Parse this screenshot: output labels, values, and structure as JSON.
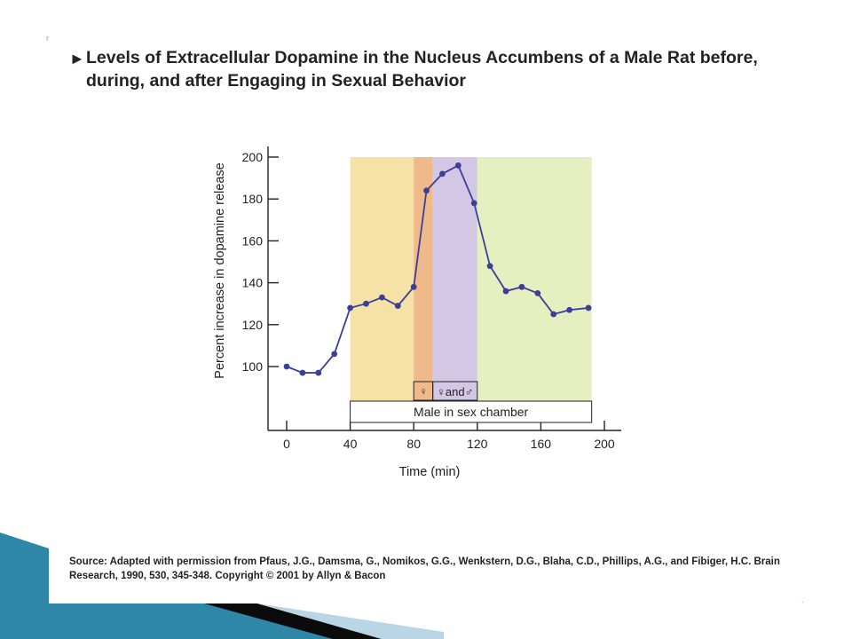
{
  "slide": {
    "bullet": "►",
    "title": "Levels of Extracellular Dopamine in the Nucleus Accumbens of a Male Rat before, during, and after Engaging in Sexual Behavior",
    "corner_mark": "r",
    "source": "Source: Adapted with permission from Pfaus, J.G., Damsma, G., Nomikos, G.G., Wenkstern, D.G., Blaha, C.D., Phillips, A.G., and Fibiger, H.C. Brain Research, 1990, 530, 345-348. Copyright © 2001 by Allyn & Bacon"
  },
  "colors": {
    "line": "#3b3f98",
    "region_yellow": "#f6e2a6",
    "region_orange": "#f0b98a",
    "region_purple": "#d4c7e6",
    "region_green": "#e6efbf",
    "deco_teal": "#2e87a7",
    "deco_dark": "#0b0b0b",
    "deco_light": "#b9d6e6"
  },
  "chart_data": {
    "type": "line",
    "title": "",
    "xlabel": "Time (min)",
    "ylabel": "Percent increase in dopamine release",
    "xlim": [
      0,
      200
    ],
    "ylim": [
      90,
      205
    ],
    "xticks": [
      0,
      40,
      80,
      120,
      160,
      200
    ],
    "yticks": [
      100,
      120,
      140,
      160,
      180,
      200
    ],
    "grid": false,
    "series": [
      {
        "x": [
          0,
          10,
          20,
          30,
          40,
          50,
          60,
          70,
          80,
          88,
          98,
          108,
          118,
          128,
          138,
          148,
          158,
          168,
          178,
          190
        ],
        "y": [
          100,
          97,
          97,
          106,
          128,
          130,
          133,
          129,
          138,
          184,
          192,
          196,
          178,
          148,
          136,
          138,
          135,
          125,
          127,
          128
        ]
      }
    ],
    "regions": [
      {
        "x": [
          40,
          80
        ],
        "color_key": "region_yellow"
      },
      {
        "x": [
          80,
          92
        ],
        "color_key": "region_orange"
      },
      {
        "x": [
          92,
          120
        ],
        "color_key": "region_purple"
      },
      {
        "x": [
          120,
          192
        ],
        "color_key": "region_green"
      }
    ],
    "annotations": {
      "female_symbol": "♀",
      "female_and_male": "♀and♂",
      "male_in_chamber": "Male in sex chamber"
    }
  }
}
